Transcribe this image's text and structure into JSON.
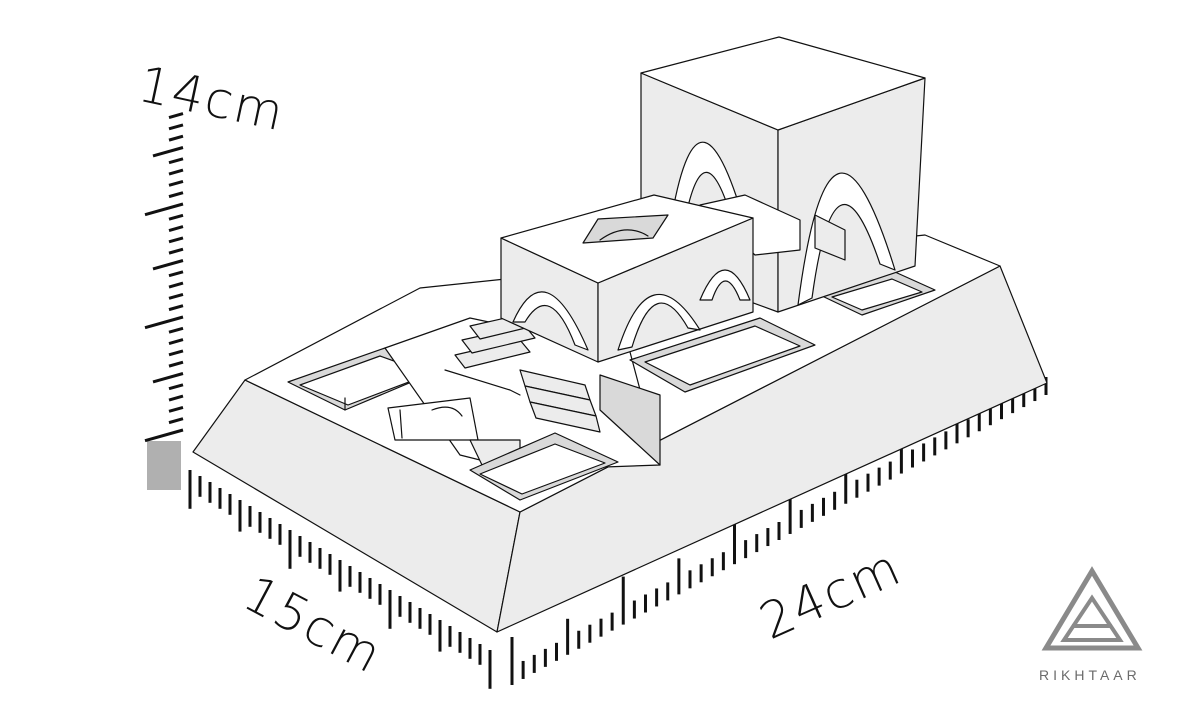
{
  "dimensions": {
    "height_label": "14cm",
    "width_label": "15cm",
    "length_label": "24cm"
  },
  "brand": {
    "name": "RIKHTAAR",
    "logo_icon": "triangle-logo-icon",
    "logo_color": "#8a8a8a"
  },
  "colors": {
    "outline": "#111111",
    "shade": "#ececec",
    "scale_marker": "#b0b0b0"
  }
}
